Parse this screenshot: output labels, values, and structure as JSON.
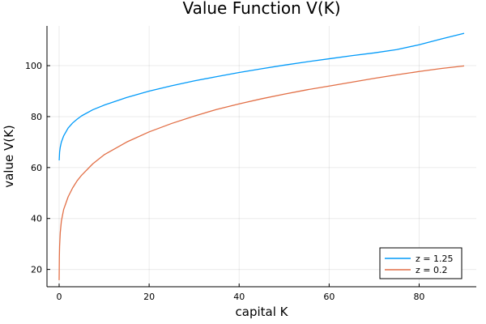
{
  "chart_data": {
    "type": "line",
    "title": "Value Function V(K)",
    "xlabel": "capital K",
    "ylabel": "value V(K)",
    "xlim": [
      -2.7,
      92.7
    ],
    "ylim": [
      13.2,
      115.6
    ],
    "xticks": [
      0,
      20,
      40,
      60,
      80
    ],
    "yticks": [
      20,
      40,
      60,
      80,
      100
    ],
    "grid": true,
    "legend_position": "bottom-right",
    "series": [
      {
        "name": "z = 1.25",
        "color": "#009af9",
        "x": [
          0.01,
          0.1,
          0.25,
          0.5,
          1,
          2,
          3,
          4,
          5,
          7.5,
          10,
          15,
          20,
          25,
          30,
          35,
          40,
          45,
          50,
          55,
          60,
          65,
          70,
          75,
          80,
          85,
          90
        ],
        "y": [
          62.8,
          66.0,
          68.0,
          70.0,
          72.4,
          75.5,
          77.5,
          79.0,
          80.3,
          82.7,
          84.5,
          87.5,
          90.0,
          92.1,
          94.0,
          95.7,
          97.3,
          98.8,
          100.2,
          101.5,
          102.7,
          103.9,
          105.0,
          106.3,
          108.2,
          110.5,
          112.7
        ]
      },
      {
        "name": "z = 0.2",
        "color": "#e26f46",
        "x": [
          0.0,
          0.05,
          0.1,
          0.25,
          0.5,
          1,
          2,
          3,
          4,
          5,
          7.5,
          10,
          15,
          20,
          25,
          30,
          35,
          40,
          45,
          50,
          55,
          60,
          65,
          70,
          75,
          80,
          85,
          90
        ],
        "y": [
          15.8,
          25.0,
          29.0,
          34.5,
          39.0,
          43.5,
          48.5,
          52.0,
          54.8,
          57.0,
          61.5,
          65.0,
          70.0,
          74.0,
          77.3,
          80.2,
          82.8,
          85.0,
          87.0,
          88.8,
          90.5,
          92.0,
          93.5,
          95.0,
          96.4,
          97.7,
          98.9,
          99.9
        ]
      }
    ]
  }
}
